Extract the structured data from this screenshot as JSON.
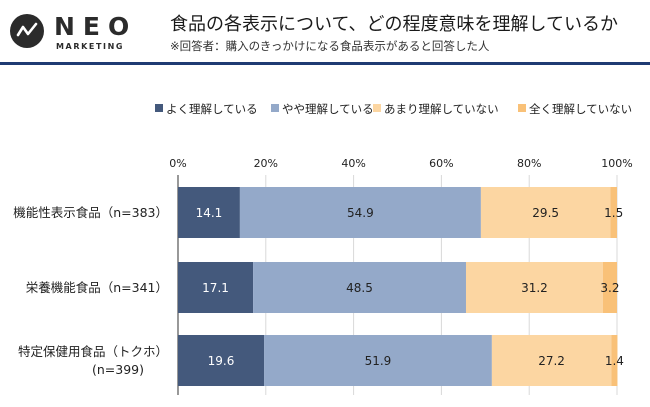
{
  "brand": {
    "name": "NEO",
    "tagline": "MARKETING"
  },
  "header": {
    "title": "食品の各表示について、どの程度意味を理解しているか",
    "subtitle": "※回答者：購入のきっかけになる食品表示があると回答した人"
  },
  "colors": {
    "rule": "#1f3b73",
    "gridline": "#d9d9d9",
    "axis": "#555555"
  },
  "chart_data": {
    "type": "bar",
    "orientation": "horizontal",
    "stacked": true,
    "categories": [
      "機能性表示食品（n=383）",
      "栄養機能食品（n=341）",
      "特定保健用食品（トクホ）(n=399)"
    ],
    "category_lines": [
      [
        "機能性表示食品（n=383）"
      ],
      [
        "栄養機能食品（n=341）"
      ],
      [
        "特定保健用食品（トクホ）",
        "(n=399)"
      ]
    ],
    "series": [
      {
        "name": "よく理解している",
        "values": [
          14.1,
          17.1,
          19.6
        ],
        "color": "#44597c",
        "label_color": "#ffffff"
      },
      {
        "name": "やや理解している",
        "values": [
          54.9,
          48.5,
          51.9
        ],
        "color": "#94a9c9",
        "label_color": "#222222"
      },
      {
        "name": "あまり理解していない",
        "values": [
          29.5,
          31.2,
          27.2
        ],
        "color": "#fcd6a2",
        "label_color": "#222222"
      },
      {
        "name": "全く理解していない",
        "values": [
          1.5,
          3.2,
          1.4
        ],
        "color": "#f9c178",
        "label_color": "#222222"
      }
    ],
    "xlim": [
      0,
      100
    ],
    "ticks": [
      "0%",
      "20%",
      "40%",
      "60%",
      "80%",
      "100%"
    ],
    "tick_values": [
      0,
      20,
      40,
      60,
      80,
      100
    ],
    "legend_position": "top",
    "grid": true
  }
}
